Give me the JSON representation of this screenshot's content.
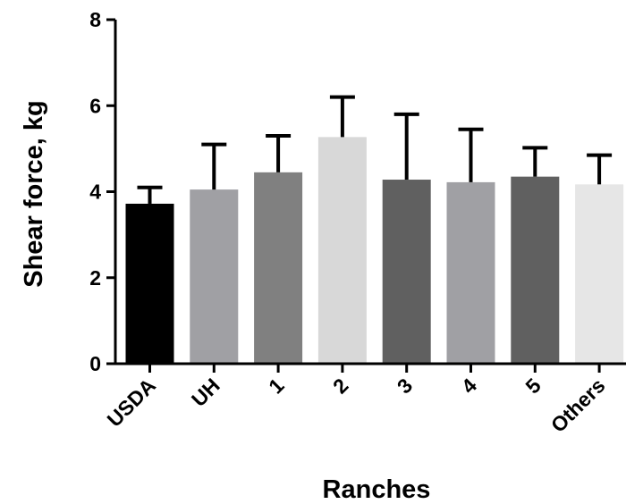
{
  "chart_data": {
    "type": "bar",
    "title": "",
    "xlabel": "Ranches",
    "ylabel": "Shear force, kg",
    "ylim": [
      0,
      8
    ],
    "yticks": [
      0,
      2,
      4,
      6,
      8
    ],
    "grid": false,
    "legend": "none",
    "error_bars": "upper only",
    "categories": [
      "USDA",
      "UH",
      "1",
      "2",
      "3",
      "4",
      "5",
      "Others"
    ],
    "values": [
      3.72,
      4.05,
      4.45,
      5.27,
      4.28,
      4.22,
      4.35,
      4.17
    ],
    "error": [
      0.38,
      1.05,
      0.85,
      0.93,
      1.52,
      1.23,
      0.67,
      0.68
    ],
    "colors": [
      "#000000",
      "#a0a0a4",
      "#808080",
      "#d8d8d8",
      "#606060",
      "#a0a0a4",
      "#606060",
      "#e6e6e6"
    ]
  }
}
